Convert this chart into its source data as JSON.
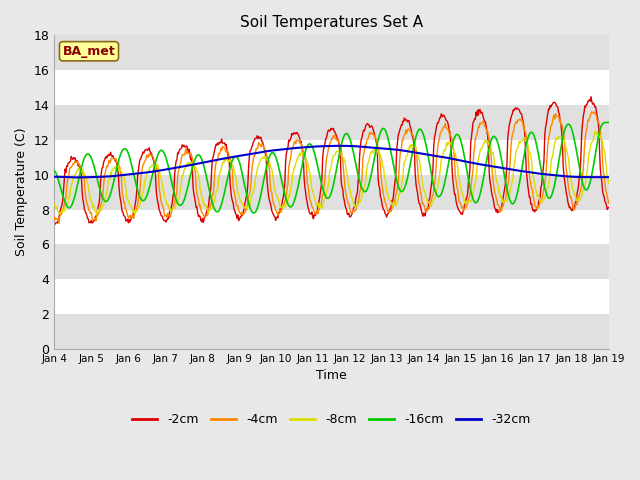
{
  "title": "Soil Temperatures Set A",
  "xlabel": "Time",
  "ylabel": "Soil Temperature (C)",
  "ylim": [
    0,
    18
  ],
  "yticks": [
    0,
    2,
    4,
    6,
    8,
    10,
    12,
    14,
    16,
    18
  ],
  "annotation": "BA_met",
  "fig_bg_color": "#e8e8e8",
  "plot_bg_color": "#ffffff",
  "band_colors": [
    "#ffffff",
    "#e0e0e0"
  ],
  "colors": {
    "-2cm": "#dd0000",
    "-4cm": "#ff8800",
    "-8cm": "#dddd00",
    "-16cm": "#00cc00",
    "-32cm": "#0000cc"
  },
  "x_tick_labels": [
    "Jan 4",
    "Jan 5",
    "Jan 6",
    "Jan 7",
    "Jan 8",
    "Jan 9",
    "Jan 10",
    "Jan 11",
    "Jan 12",
    "Jan 13",
    "Jan 14",
    "Jan 15",
    "Jan 16",
    "Jan 17",
    "Jan 18",
    "Jan 19"
  ],
  "n_points": 720,
  "figsize": [
    6.4,
    4.8
  ],
  "dpi": 100
}
